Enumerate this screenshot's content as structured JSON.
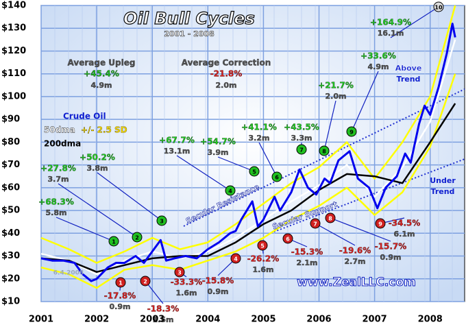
{
  "chart_data": {
    "type": "line",
    "title": "Oil Bull Cycles",
    "subtitle": "2001 - 2008",
    "xlim": [
      2001,
      2008.62
    ],
    "xticks": [
      2001,
      2002,
      2003,
      2004,
      2005,
      2006,
      2007,
      2008
    ],
    "ylim": [
      10,
      140
    ],
    "yticks": [
      {
        "value": 10,
        "label": "$10"
      },
      {
        "value": 20,
        "label": "$20"
      },
      {
        "value": 30,
        "label": "$30"
      },
      {
        "value": 40,
        "label": "$40"
      },
      {
        "value": 50,
        "label": "$50"
      },
      {
        "value": 60,
        "label": "$60"
      },
      {
        "value": 70,
        "label": "$70"
      },
      {
        "value": 80,
        "label": "$80"
      },
      {
        "value": 90,
        "label": "$90"
      },
      {
        "value": 100,
        "label": "$100"
      },
      {
        "value": 110,
        "label": "$110"
      },
      {
        "value": 120,
        "label": "$120"
      },
      {
        "value": 130,
        "label": "$130"
      },
      {
        "value": 140,
        "label": "$140"
      }
    ],
    "grid": true,
    "series": [
      {
        "name": "+/- 2.5 SD",
        "color": "#ffff00",
        "x": [
          2001,
          2001.5,
          2002,
          2002.5,
          2003,
          2003.5,
          2004,
          2004.5,
          2005,
          2005.5,
          2006,
          2006.5,
          2007,
          2007.5,
          2008,
          2008.45
        ],
        "values": [
          38,
          33,
          27,
          32,
          38,
          33,
          36,
          44,
          53,
          62,
          69,
          80,
          64,
          80,
          100,
          140
        ],
        "lower": [
          25,
          22,
          16,
          24,
          26,
          24,
          28,
          32,
          38,
          46,
          52,
          60,
          48,
          58,
          78,
          110
        ]
      },
      {
        "name": "50dma",
        "color": "#ffffff",
        "x": [
          2001,
          2001.5,
          2002,
          2002.5,
          2003,
          2003.5,
          2004,
          2004.5,
          2005,
          2005.5,
          2006,
          2006.5,
          2007,
          2007.5,
          2008,
          2008.45
        ],
        "values": [
          31,
          28,
          22,
          28,
          32,
          29,
          32,
          38,
          46,
          54,
          61,
          70,
          56,
          69,
          89,
          125
        ]
      },
      {
        "name": "200dma",
        "color": "#000000",
        "x": [
          2001,
          2001.5,
          2002,
          2002.5,
          2003,
          2003.5,
          2004,
          2004.5,
          2005,
          2005.5,
          2006,
          2006.5,
          2007,
          2007.5,
          2008,
          2008.45
        ],
        "values": [
          29,
          28,
          23,
          26,
          29,
          30,
          30,
          36,
          44,
          50,
          59,
          66,
          65,
          62,
          80,
          97
        ]
      },
      {
        "name": "Crude Oil",
        "color": "#0000ee",
        "x": [
          2001,
          2001.2,
          2001.4,
          2001.6,
          2001.75,
          2001.9,
          2002,
          2002.2,
          2002.35,
          2002.5,
          2002.7,
          2002.85,
          2003,
          2003.15,
          2003.25,
          2003.4,
          2003.6,
          2003.8,
          2004,
          2004.2,
          2004.4,
          2004.5,
          2004.6,
          2004.8,
          2004.9,
          2005,
          2005.2,
          2005.3,
          2005.5,
          2005.65,
          2005.8,
          2005.95,
          2006.1,
          2006.2,
          2006.35,
          2006.55,
          2006.7,
          2006.9,
          2007.05,
          2007.2,
          2007.4,
          2007.55,
          2007.65,
          2007.8,
          2007.9,
          2008,
          2008.15,
          2008.3,
          2008.4,
          2008.45
        ],
        "values": [
          29,
          28,
          28,
          27,
          22,
          19,
          20,
          25,
          27,
          27,
          30,
          27,
          32,
          37,
          28,
          29,
          30,
          29,
          33,
          36,
          40,
          41,
          46,
          54,
          43,
          46,
          56,
          50,
          58,
          68,
          60,
          57,
          64,
          62,
          72,
          76,
          64,
          60,
          51,
          60,
          65,
          75,
          71,
          88,
          96,
          92,
          104,
          119,
          132,
          126
        ]
      }
    ],
    "averages": [
      {
        "label": "Average Upleg",
        "gain": "+45.4%",
        "duration": "4.9m"
      },
      {
        "label": "Average Correction",
        "gain": "-21.8%",
        "duration": "2.0m"
      }
    ],
    "uplegs": [
      {
        "label": "1",
        "gain": "+68.3%",
        "duration": "5.8m"
      },
      {
        "label": "2",
        "gain": "+27.8%",
        "duration": "3.7m"
      },
      {
        "label": "3",
        "gain": "+50.2%",
        "duration": "3.8m"
      },
      {
        "label": "4",
        "gain": "+67.7%",
        "duration": "13.1m"
      },
      {
        "label": "5",
        "gain": "+54.7%",
        "duration": "3.9m"
      },
      {
        "label": "6",
        "gain": "+41.1%",
        "duration": "3.2m"
      },
      {
        "label": "7",
        "gain": "+43.5%",
        "duration": "3.3m"
      },
      {
        "label": "8",
        "gain": "+21.7%",
        "duration": "2.0m"
      },
      {
        "label": "9",
        "gain": "+33.6%",
        "duration": "4.9m"
      },
      {
        "label": "10",
        "gain": "+164.9%",
        "duration": "16.1m"
      }
    ],
    "corrections": [
      {
        "label": "1",
        "gain": "-17.8%",
        "duration": "0.9m"
      },
      {
        "label": "2",
        "gain": "-18.3%",
        "duration": "1.5m"
      },
      {
        "label": "3",
        "gain": "-33.3%",
        "duration": "1.6m"
      },
      {
        "label": "4",
        "gain": "-15.8%",
        "duration": "0.9m"
      },
      {
        "label": "5",
        "gain": "-26.2%",
        "duration": "1.6m"
      },
      {
        "label": "6",
        "gain": "-15.3%",
        "duration": "2.1m"
      },
      {
        "label": "7",
        "gain": "-19.6%",
        "duration": "2.7m"
      },
      {
        "label": "8",
        "gain": "-15.7%",
        "duration": "0.9m"
      },
      {
        "label": "9",
        "gain": "-34.5%",
        "duration": "6.1m"
      }
    ],
    "notes": {
      "above": [
        "Above",
        "Trend"
      ],
      "under": [
        "Under",
        "Trend"
      ],
      "resistance": "Secular Resistance",
      "support": "Secular Support",
      "website": "www.ZealLLC.com",
      "date": "6.4.2008"
    }
  }
}
